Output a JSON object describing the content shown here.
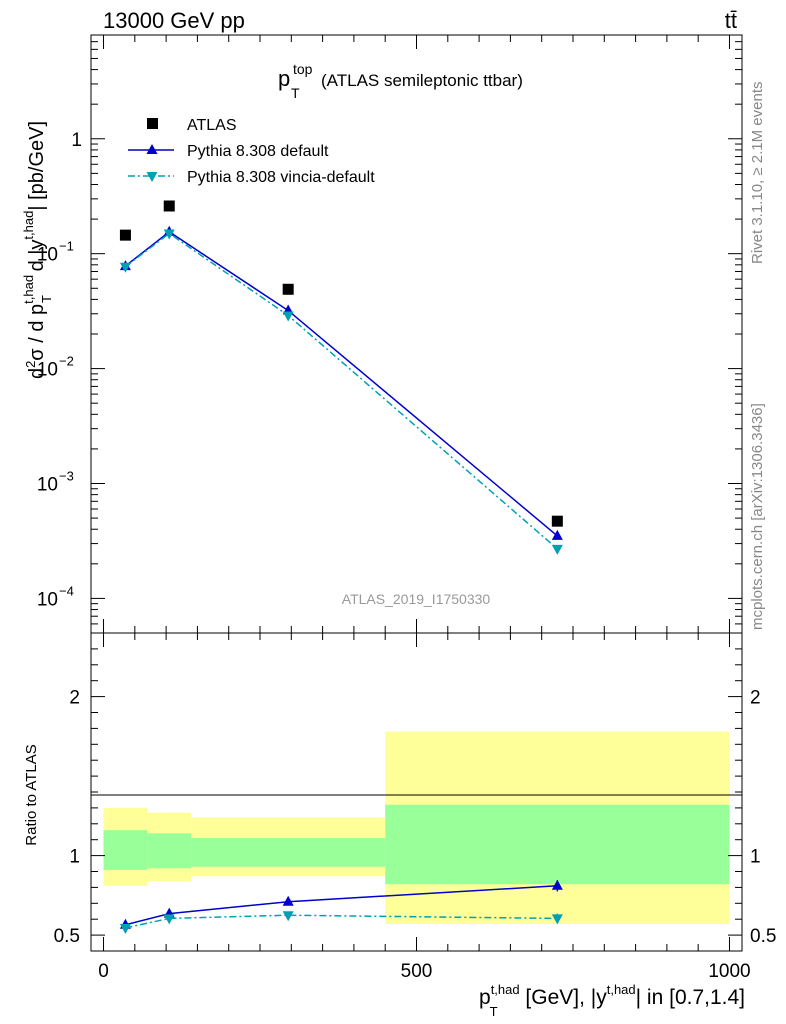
{
  "header": {
    "beam_label": "13000 GeV pp",
    "process_label": "tt̄"
  },
  "side_labels": {
    "rivet": "Rivet 3.1.10, ≥ 2.1M events",
    "mcplots": "mcplots.cern.ch [arXiv:1306.3436]"
  },
  "chart_data": [
    {
      "type": "line",
      "panel": "main",
      "title_main": "p",
      "title_sup": "top",
      "title_sub": "T",
      "title_suffix": "(ATLAS semileptonic ttbar)",
      "ylabel": "d²σ / d p_T^{t,had} d |y^{t,had}| [pb/GeV]",
      "yscale": "log",
      "ylim": [
        5e-05,
        8
      ],
      "xlim": [
        -20,
        1020
      ],
      "ytick_labels": [
        "1",
        "10",
        "10",
        "10",
        "10"
      ],
      "ytick_exps": [
        "",
        "−1",
        "−2",
        "−3",
        "−4"
      ],
      "analysis_id": "ATLAS_2019_I1750330",
      "x": [
        35,
        105,
        295,
        725
      ],
      "series": [
        {
          "name": "ATLAS",
          "values": [
            0.145,
            0.26,
            0.049,
            0.00047
          ],
          "color": "#000000",
          "marker": "square"
        },
        {
          "name": "Pythia 8.308 default",
          "values": [
            0.078,
            0.155,
            0.032,
            0.00035
          ],
          "color": "#0000cc",
          "marker": "triangle-up"
        },
        {
          "name": "Pythia 8.308 vincia-default",
          "values": [
            0.077,
            0.15,
            0.029,
            0.00027
          ],
          "color": "#00a0b4",
          "marker": "triangle-down"
        }
      ]
    },
    {
      "type": "line",
      "panel": "ratio",
      "ylabel": "Ratio to ATLAS",
      "ylim": [
        0.4,
        2.4
      ],
      "xlim": [
        -20,
        1020
      ],
      "xlabel": "p_T^{t,had} [GeV], |y^{t,had}| in [0.7,1.4]",
      "xtick_labels": [
        "0",
        "500",
        "1000"
      ],
      "ytick_labels": [
        "0.5",
        "1",
        "2"
      ],
      "bands": [
        {
          "x0": 0,
          "x1": 70,
          "yellow": [
            0.81,
            1.3
          ],
          "green": [
            0.91,
            1.16
          ]
        },
        {
          "x0": 70,
          "x1": 140,
          "yellow": [
            0.84,
            1.27
          ],
          "green": [
            0.92,
            1.14
          ]
        },
        {
          "x0": 140,
          "x1": 450,
          "yellow": [
            0.87,
            1.24
          ],
          "green": [
            0.93,
            1.11
          ]
        },
        {
          "x0": 450,
          "x1": 1000,
          "yellow": [
            0.57,
            1.78
          ],
          "green": [
            0.82,
            1.32
          ]
        }
      ],
      "x": [
        35,
        105,
        295,
        725
      ],
      "series": [
        {
          "name": "Pythia 8.308 default",
          "values": [
            0.565,
            0.635,
            0.71,
            0.81
          ],
          "err": [
            0.012,
            0.012,
            0.012,
            0.035
          ],
          "color": "#0000cc",
          "marker": "triangle-up"
        },
        {
          "name": "Pythia 8.308 vincia-default",
          "values": [
            0.545,
            0.605,
            0.625,
            0.605
          ],
          "err": [
            0.012,
            0.012,
            0.012,
            0.03
          ],
          "color": "#00a0b4",
          "marker": "triangle-down"
        }
      ]
    }
  ]
}
